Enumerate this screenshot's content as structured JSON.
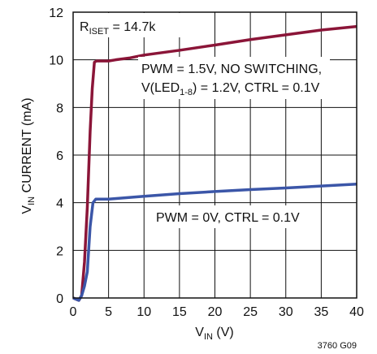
{
  "chart_data": {
    "type": "line",
    "xlabel_main": "V",
    "xlabel_sub": "IN",
    "xlabel_tail": " (V)",
    "ylabel_main": "V",
    "ylabel_sub": "IN",
    "ylabel_tail": " CURRENT (mA)",
    "xlim": [
      0,
      40
    ],
    "ylim": [
      0,
      12
    ],
    "x_ticks": [
      0,
      5,
      10,
      15,
      20,
      25,
      30,
      35,
      40
    ],
    "y_ticks": [
      0,
      2,
      4,
      6,
      8,
      10,
      12
    ],
    "grid": true,
    "series": [
      {
        "color": "#8b1538",
        "x": [
          0,
          0.8,
          1.2,
          1.6,
          2.0,
          2.4,
          2.7,
          3.0,
          3.3,
          4,
          5,
          6,
          8,
          10,
          15,
          20,
          25,
          30,
          35,
          40
        ],
        "y": [
          0.0,
          -0.1,
          0.1,
          1.5,
          3.8,
          7.0,
          8.8,
          9.9,
          9.95,
          9.95,
          9.95,
          10.0,
          10.08,
          10.2,
          10.4,
          10.62,
          10.85,
          11.05,
          11.25,
          11.4
        ]
      },
      {
        "color": "#3b56a8",
        "x": [
          0,
          0.8,
          1.2,
          1.6,
          2.0,
          2.4,
          2.8,
          3.2,
          4,
          5,
          10,
          15,
          20,
          25,
          30,
          35,
          40
        ],
        "y": [
          0.0,
          -0.1,
          0.1,
          0.5,
          1.1,
          3.0,
          4.0,
          4.15,
          4.15,
          4.15,
          4.27,
          4.38,
          4.47,
          4.55,
          4.62,
          4.7,
          4.78
        ]
      }
    ],
    "annotations": {
      "riset_main": "R",
      "riset_sub": "ISET",
      "riset_tail": " = 14.7k",
      "upper_line1": "PWM = 1.5V, NO SWITCHING,",
      "upper_line2_a": "V(LED",
      "upper_line2_sub": "1-8",
      "upper_line2_b": ") = 1.2V, CTRL = 0.1V",
      "lower": "PWM = 0V, CTRL = 0.1V"
    },
    "figure_id": "3760 G09"
  }
}
